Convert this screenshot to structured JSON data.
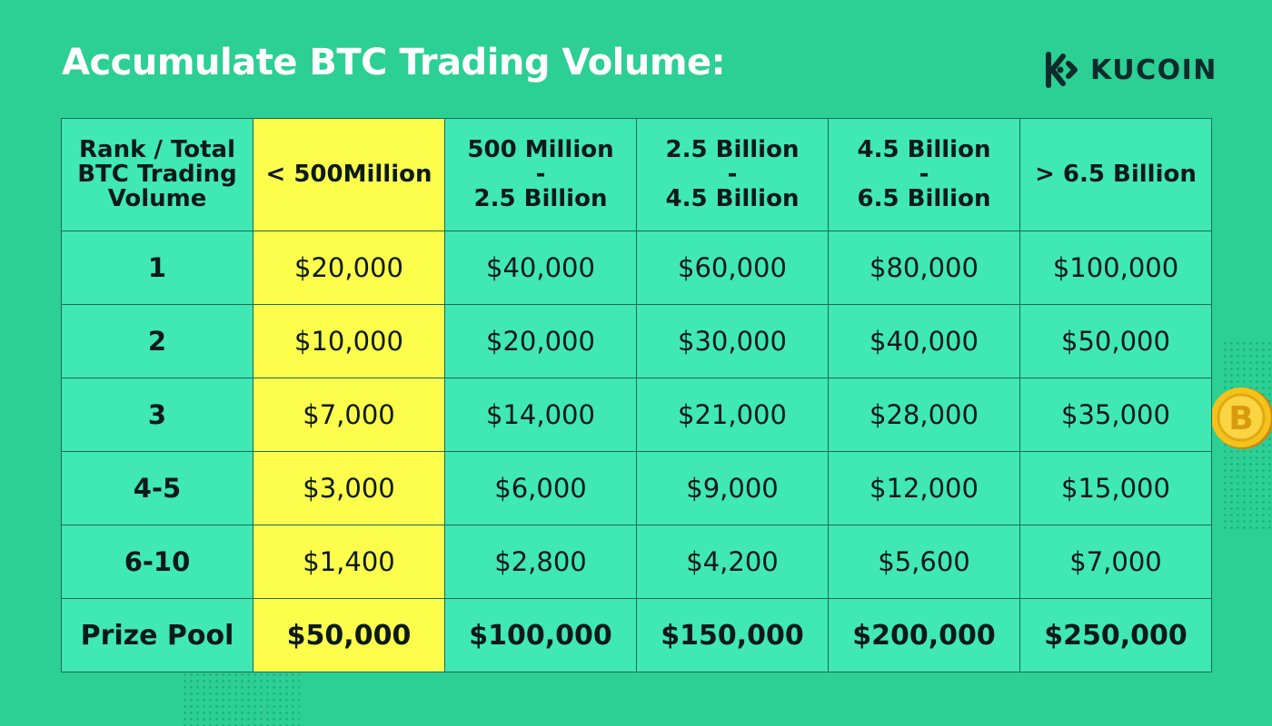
{
  "title": "Accumulate BTC Trading Volume:",
  "logo": {
    "text": "KUCOIN",
    "icon": "kucoin-logo-icon"
  },
  "colors": {
    "background": "#2ccf94",
    "cell": "#40e8b4",
    "highlight": "#fdfd4c",
    "border": "#1a6b52",
    "text": "#0b1a18"
  },
  "table": {
    "header_first": [
      "Rank / Total",
      "BTC Trading",
      "Volume"
    ],
    "headers": [
      [
        "< 500Million"
      ],
      [
        "500 Million",
        "-",
        "2.5 Billion"
      ],
      [
        "2.5 Billion",
        "-",
        "4.5 Billion"
      ],
      [
        "4.5 Billion",
        "-",
        "6.5 Billion"
      ],
      [
        "> 6.5 Billion"
      ]
    ],
    "rows": [
      {
        "rank": "1",
        "values": [
          "$20,000",
          "$40,000",
          "$60,000",
          "$80,000",
          "$100,000"
        ]
      },
      {
        "rank": "2",
        "values": [
          "$10,000",
          "$20,000",
          "$30,000",
          "$40,000",
          "$50,000"
        ]
      },
      {
        "rank": "3",
        "values": [
          "$7,000",
          "$14,000",
          "$21,000",
          "$28,000",
          "$35,000"
        ]
      },
      {
        "rank": "4-5",
        "values": [
          "$3,000",
          "$6,000",
          "$9,000",
          "$12,000",
          "$15,000"
        ]
      },
      {
        "rank": "6-10",
        "values": [
          "$1,400",
          "$2,800",
          "$4,200",
          "$5,600",
          "$7,000"
        ]
      }
    ],
    "pool": {
      "label": "Prize Pool",
      "values": [
        "$50,000",
        "$100,000",
        "$150,000",
        "$200,000",
        "$250,000"
      ]
    }
  },
  "decor": {
    "coin_icon": "bitcoin-coin-icon"
  }
}
